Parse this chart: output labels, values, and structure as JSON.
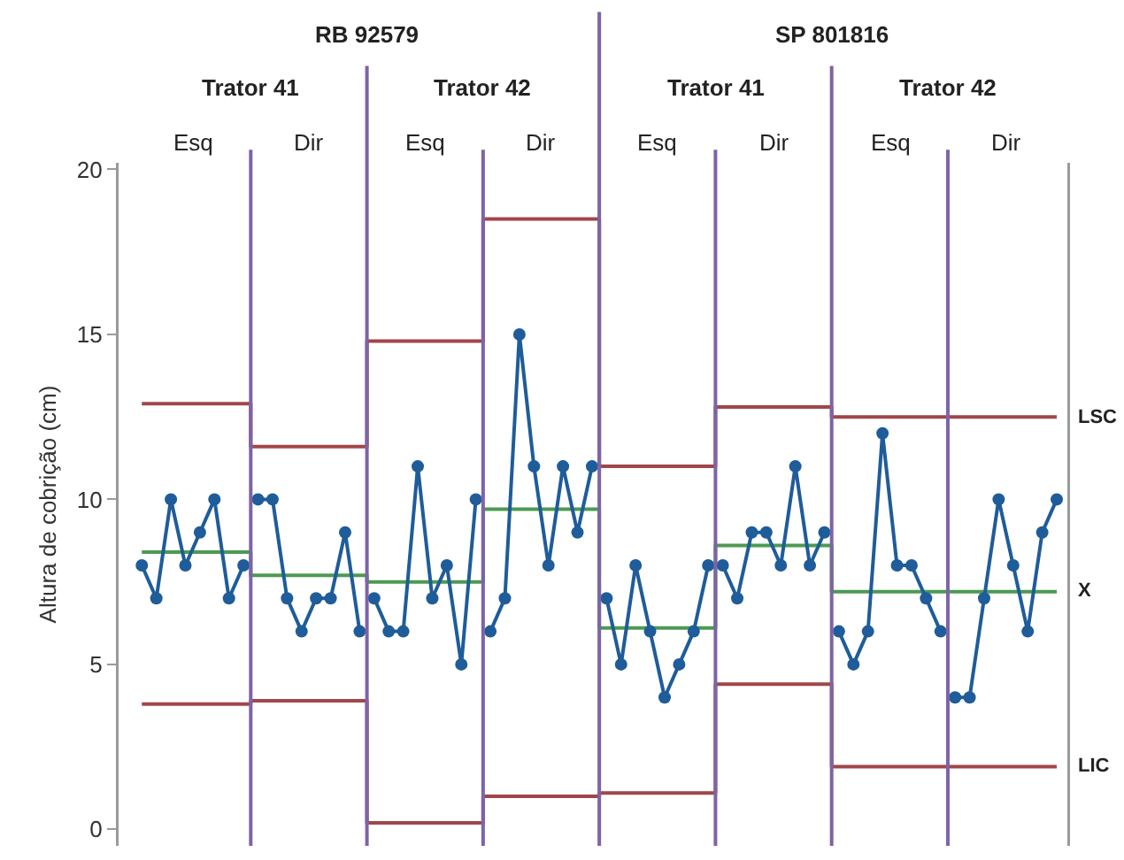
{
  "chart_data": {
    "type": "line",
    "ylabel": "Altura de cobrição (cm)",
    "annotations": [
      "RB 92579",
      "SP 801816",
      "Trator 41",
      "Trator 42",
      "Trator 41",
      "Trator 42",
      "Esq",
      "Dir",
      "Esq",
      "Dir",
      "Esq",
      "Dir",
      "Esq",
      "Dir"
    ],
    "categories": [
      null,
      null,
      null,
      null,
      null,
      null,
      null,
      null,
      null,
      null,
      null,
      null,
      null,
      null,
      null,
      null,
      null,
      null,
      null,
      null,
      null,
      null,
      null,
      null,
      null,
      null,
      null,
      null,
      null,
      null,
      null,
      null,
      null,
      null,
      null,
      null,
      null,
      null,
      null,
      null,
      null,
      null,
      null,
      null,
      null,
      null,
      null,
      null,
      null,
      null,
      null,
      null,
      null,
      null,
      null,
      null,
      null,
      null,
      null,
      null,
      null,
      null,
      null,
      null
    ],
    "ylim": [
      -0.5,
      20.2
    ],
    "yticks": [
      0,
      5,
      10,
      15,
      20
    ],
    "tick_labels": "y",
    "legend": false,
    "marker": "circle",
    "series": [
      {
        "type": "step",
        "marker": "none",
        "name": "LSC",
        "color": "#a1464a",
        "values": [
          12.9,
          12.9,
          12.9,
          12.9,
          12.9,
          12.9,
          12.9,
          12.9,
          11.6,
          11.6,
          11.6,
          11.6,
          11.6,
          11.6,
          11.6,
          11.6,
          14.8,
          14.8,
          14.8,
          14.8,
          14.8,
          14.8,
          14.8,
          14.8,
          18.5,
          18.5,
          18.5,
          18.5,
          18.5,
          18.5,
          18.5,
          18.5,
          11,
          11,
          11,
          11,
          11,
          11,
          11,
          11,
          12.8,
          12.8,
          12.8,
          12.8,
          12.8,
          12.8,
          12.8,
          12.8,
          12.5,
          12.5,
          12.5,
          12.5,
          12.5,
          12.5,
          12.5,
          12.5,
          12.5,
          12.5,
          12.5,
          12.5,
          12.5,
          12.5,
          12.5,
          12.5
        ]
      },
      {
        "type": "step",
        "marker": "none",
        "name": "X",
        "color": "#4c9a52",
        "values": [
          8.4,
          8.4,
          8.4,
          8.4,
          8.4,
          8.4,
          8.4,
          8.4,
          7.7,
          7.7,
          7.7,
          7.7,
          7.7,
          7.7,
          7.7,
          7.7,
          7.5,
          7.5,
          7.5,
          7.5,
          7.5,
          7.5,
          7.5,
          7.5,
          9.7,
          9.7,
          9.7,
          9.7,
          9.7,
          9.7,
          9.7,
          9.7,
          6.1,
          6.1,
          6.1,
          6.1,
          6.1,
          6.1,
          6.1,
          6.1,
          8.6,
          8.6,
          8.6,
          8.6,
          8.6,
          8.6,
          8.6,
          8.6,
          7.2,
          7.2,
          7.2,
          7.2,
          7.2,
          7.2,
          7.2,
          7.2,
          7.2,
          7.2,
          7.2,
          7.2,
          7.2,
          7.2,
          7.2,
          7.2
        ]
      },
      {
        "type": "step",
        "marker": "none",
        "name": "LIC",
        "color": "#a1464a",
        "values": [
          3.8,
          3.8,
          3.8,
          3.8,
          3.8,
          3.8,
          3.8,
          3.8,
          3.9,
          3.9,
          3.9,
          3.9,
          3.9,
          3.9,
          3.9,
          3.9,
          0.2,
          0.2,
          0.2,
          0.2,
          0.2,
          0.2,
          0.2,
          0.2,
          1,
          1,
          1,
          1,
          1,
          1,
          1,
          1,
          1.1,
          1.1,
          1.1,
          1.1,
          1.1,
          1.1,
          1.1,
          1.1,
          4.4,
          4.4,
          4.4,
          4.4,
          4.4,
          4.4,
          4.4,
          4.4,
          1.9,
          1.9,
          1.9,
          1.9,
          1.9,
          1.9,
          1.9,
          1.9,
          1.9,
          1.9,
          1.9,
          1.9,
          1.9,
          1.9,
          1.9,
          1.9
        ]
      },
      {
        "color": "#1f5c9a",
        "values": [
          8,
          7,
          10,
          8,
          9,
          10,
          7,
          8,
          null,
          null,
          null,
          null,
          null,
          null,
          null,
          null,
          null,
          null,
          null,
          null,
          null,
          null,
          null,
          null,
          null,
          null,
          null,
          null,
          null,
          null,
          null,
          null,
          null,
          null,
          null,
          null,
          null,
          null,
          null,
          null,
          null,
          null,
          null,
          null,
          null,
          null,
          null,
          null,
          null,
          null,
          null,
          null,
          null,
          null,
          null,
          null,
          null,
          null,
          null,
          null,
          null,
          null,
          null,
          null
        ]
      },
      {
        "color": "#1f5c9a",
        "values": [
          null,
          null,
          null,
          null,
          null,
          null,
          null,
          null,
          10,
          10,
          7,
          6,
          7,
          7,
          9,
          6,
          null,
          null,
          null,
          null,
          null,
          null,
          null,
          null,
          null,
          null,
          null,
          null,
          null,
          null,
          null,
          null,
          null,
          null,
          null,
          null,
          null,
          null,
          null,
          null,
          null,
          null,
          null,
          null,
          null,
          null,
          null,
          null,
          null,
          null,
          null,
          null,
          null,
          null,
          null,
          null,
          null,
          null,
          null,
          null,
          null,
          null,
          null,
          null
        ]
      },
      {
        "color": "#1f5c9a",
        "values": [
          null,
          null,
          null,
          null,
          null,
          null,
          null,
          null,
          null,
          null,
          null,
          null,
          null,
          null,
          null,
          null,
          7,
          6,
          6,
          11,
          7,
          8,
          5,
          10,
          null,
          null,
          null,
          null,
          null,
          null,
          null,
          null,
          null,
          null,
          null,
          null,
          null,
          null,
          null,
          null,
          null,
          null,
          null,
          null,
          null,
          null,
          null,
          null,
          null,
          null,
          null,
          null,
          null,
          null,
          null,
          null,
          null,
          null,
          null,
          null,
          null,
          null,
          null,
          null
        ]
      },
      {
        "color": "#1f5c9a",
        "values": [
          null,
          null,
          null,
          null,
          null,
          null,
          null,
          null,
          null,
          null,
          null,
          null,
          null,
          null,
          null,
          null,
          null,
          null,
          null,
          null,
          null,
          null,
          null,
          null,
          6,
          7,
          15,
          11,
          8,
          11,
          9,
          11,
          null,
          null,
          null,
          null,
          null,
          null,
          null,
          null,
          null,
          null,
          null,
          null,
          null,
          null,
          null,
          null,
          null,
          null,
          null,
          null,
          null,
          null,
          null,
          null,
          null,
          null,
          null,
          null,
          null,
          null,
          null,
          null
        ]
      },
      {
        "color": "#1f5c9a",
        "values": [
          null,
          null,
          null,
          null,
          null,
          null,
          null,
          null,
          null,
          null,
          null,
          null,
          null,
          null,
          null,
          null,
          null,
          null,
          null,
          null,
          null,
          null,
          null,
          null,
          null,
          null,
          null,
          null,
          null,
          null,
          null,
          null,
          7,
          5,
          8,
          6,
          4,
          5,
          6,
          8,
          null,
          null,
          null,
          null,
          null,
          null,
          null,
          null,
          null,
          null,
          null,
          null,
          null,
          null,
          null,
          null,
          null,
          null,
          null,
          null,
          null,
          null,
          null,
          null
        ]
      },
      {
        "color": "#1f5c9a",
        "values": [
          null,
          null,
          null,
          null,
          null,
          null,
          null,
          null,
          null,
          null,
          null,
          null,
          null,
          null,
          null,
          null,
          null,
          null,
          null,
          null,
          null,
          null,
          null,
          null,
          null,
          null,
          null,
          null,
          null,
          null,
          null,
          null,
          null,
          null,
          null,
          null,
          null,
          null,
          null,
          null,
          8,
          7,
          9,
          9,
          8,
          11,
          8,
          9,
          null,
          null,
          null,
          null,
          null,
          null,
          null,
          null,
          null,
          null,
          null,
          null,
          null,
          null,
          null,
          null
        ]
      },
      {
        "color": "#1f5c9a",
        "values": [
          null,
          null,
          null,
          null,
          null,
          null,
          null,
          null,
          null,
          null,
          null,
          null,
          null,
          null,
          null,
          null,
          null,
          null,
          null,
          null,
          null,
          null,
          null,
          null,
          null,
          null,
          null,
          null,
          null,
          null,
          null,
          null,
          null,
          null,
          null,
          null,
          null,
          null,
          null,
          null,
          null,
          null,
          null,
          null,
          null,
          null,
          null,
          null,
          6,
          5,
          6,
          12,
          8,
          8,
          7,
          6,
          null,
          null,
          null,
          null,
          null,
          null,
          null,
          null
        ]
      },
      {
        "color": "#1f5c9a",
        "values": [
          null,
          null,
          null,
          null,
          null,
          null,
          null,
          null,
          null,
          null,
          null,
          null,
          null,
          null,
          null,
          null,
          null,
          null,
          null,
          null,
          null,
          null,
          null,
          null,
          null,
          null,
          null,
          null,
          null,
          null,
          null,
          null,
          null,
          null,
          null,
          null,
          null,
          null,
          null,
          null,
          null,
          null,
          null,
          null,
          null,
          null,
          null,
          null,
          null,
          null,
          null,
          null,
          null,
          null,
          null,
          null,
          4,
          4,
          7,
          10,
          8,
          6,
          9,
          10
        ]
      }
    ]
  }
}
